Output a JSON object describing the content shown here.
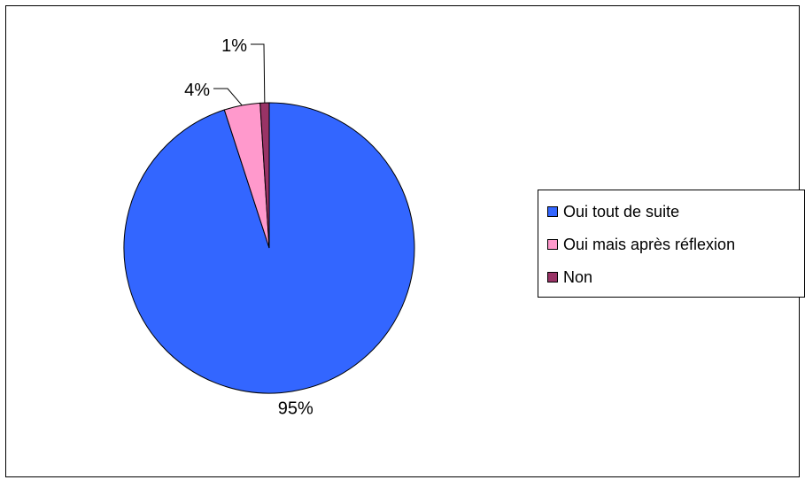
{
  "chart_data": {
    "type": "pie",
    "title": "",
    "categories": [
      "Oui tout de suite",
      "Oui mais après réflexion",
      "Non"
    ],
    "values": [
      95,
      4,
      1
    ],
    "labels": [
      "95%",
      "4%",
      "1%"
    ],
    "colors": [
      "#3366ff",
      "#ff99cc",
      "#993366"
    ],
    "legend_position": "right"
  }
}
